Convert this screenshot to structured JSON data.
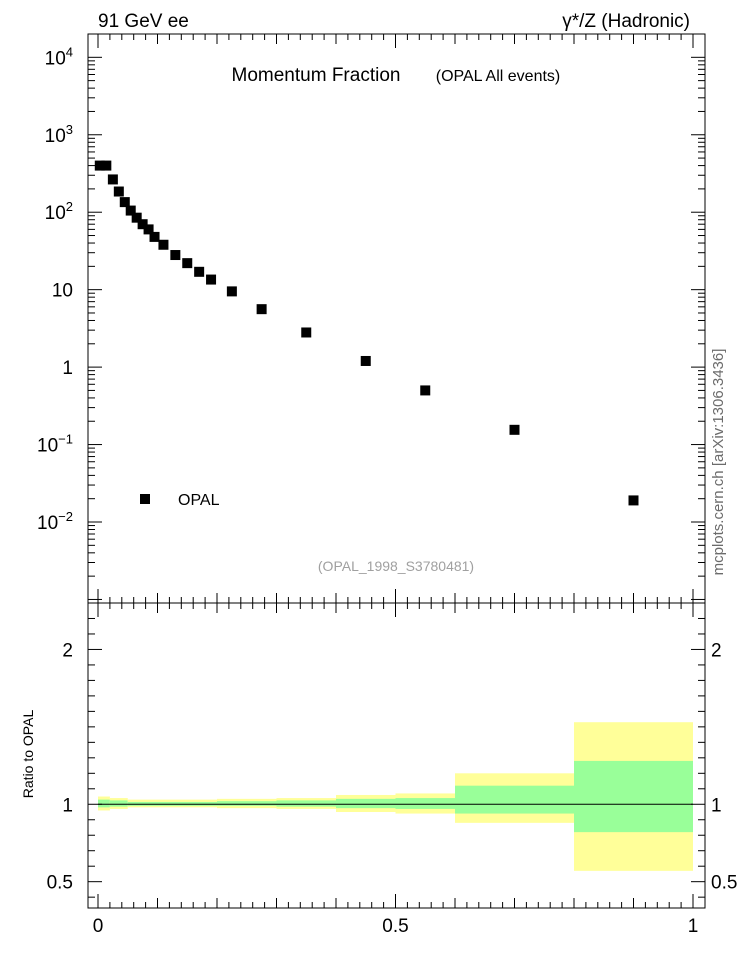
{
  "header": {
    "left": "91 GeV ee",
    "right": "γ*/Z (Hadronic)"
  },
  "side_label": "mcplots.cern.ch [arXiv:1306.3436]",
  "chart_data": [
    {
      "type": "scatter",
      "title": "Momentum Fraction",
      "subtitle": "(OPAL All events)",
      "watermark": "(OPAL_1998_S3780481)",
      "xlabel": "",
      "ylabel": "",
      "xlim": [
        0,
        1
      ],
      "ylim": [
        0.0009,
        20000
      ],
      "yscale": "log",
      "y_ticks": [
        {
          "v": 0.01,
          "base": "10",
          "exp": "−2"
        },
        {
          "v": 0.1,
          "base": "10",
          "exp": "−1"
        },
        {
          "v": 1,
          "base": "1",
          "exp": ""
        },
        {
          "v": 10,
          "base": "10",
          "exp": ""
        },
        {
          "v": 100,
          "base": "10",
          "exp": "2"
        },
        {
          "v": 1000,
          "base": "10",
          "exp": "3"
        },
        {
          "v": 10000,
          "base": "10",
          "exp": "4"
        }
      ],
      "legend": {
        "position": "lower-left",
        "entries": [
          "OPAL"
        ]
      },
      "series": [
        {
          "name": "OPAL",
          "marker": "square",
          "color": "#000000",
          "x": [
            0.003,
            0.014,
            0.025,
            0.035,
            0.045,
            0.055,
            0.065,
            0.075,
            0.085,
            0.095,
            0.11,
            0.13,
            0.15,
            0.17,
            0.19,
            0.225,
            0.275,
            0.35,
            0.45,
            0.55,
            0.7,
            0.9
          ],
          "y": [
            400,
            400,
            265,
            185,
            135,
            105,
            85,
            70,
            60,
            48,
            38,
            28,
            22,
            17,
            13.5,
            9.5,
            5.6,
            2.8,
            1.2,
            0.5,
            0.155,
            0.019
          ]
        }
      ]
    },
    {
      "type": "area",
      "title": "",
      "xlabel": "",
      "ylabel": "Ratio to OPAL",
      "xlim": [
        0,
        1
      ],
      "ylim": [
        0.33,
        2.3
      ],
      "y_ticks": [
        0.5,
        1,
        2
      ],
      "y_tick_labels": [
        "0.5",
        "1",
        "2"
      ],
      "x_ticks": [
        0,
        0.5,
        1
      ],
      "x_tick_labels": [
        "0",
        "0.5",
        "1"
      ],
      "reference_line": 1,
      "colors": {
        "outer_band": "#ffff99",
        "inner_band": "#99ff99"
      },
      "bands": [
        {
          "x0": 0.0,
          "x1": 0.02,
          "outer": [
            0.96,
            1.05
          ],
          "inner": [
            0.98,
            1.03
          ]
        },
        {
          "x0": 0.02,
          "x1": 0.05,
          "outer": [
            0.97,
            1.04
          ],
          "inner": [
            0.985,
            1.025
          ]
        },
        {
          "x0": 0.05,
          "x1": 0.1,
          "outer": [
            0.98,
            1.03
          ],
          "inner": [
            0.99,
            1.015
          ]
        },
        {
          "x0": 0.1,
          "x1": 0.2,
          "outer": [
            0.98,
            1.03
          ],
          "inner": [
            0.99,
            1.015
          ]
        },
        {
          "x0": 0.2,
          "x1": 0.3,
          "outer": [
            0.975,
            1.035
          ],
          "inner": [
            0.99,
            1.02
          ]
        },
        {
          "x0": 0.3,
          "x1": 0.4,
          "outer": [
            0.97,
            1.04
          ],
          "inner": [
            0.985,
            1.025
          ]
        },
        {
          "x0": 0.4,
          "x1": 0.5,
          "outer": [
            0.95,
            1.06
          ],
          "inner": [
            0.975,
            1.035
          ]
        },
        {
          "x0": 0.5,
          "x1": 0.6,
          "outer": [
            0.94,
            1.07
          ],
          "inner": [
            0.97,
            1.04
          ]
        },
        {
          "x0": 0.6,
          "x1": 0.8,
          "outer": [
            0.88,
            1.2
          ],
          "inner": [
            0.94,
            1.12
          ]
        },
        {
          "x0": 0.8,
          "x1": 1.0,
          "outer": [
            0.57,
            1.53
          ],
          "inner": [
            0.82,
            1.28
          ]
        }
      ]
    }
  ]
}
